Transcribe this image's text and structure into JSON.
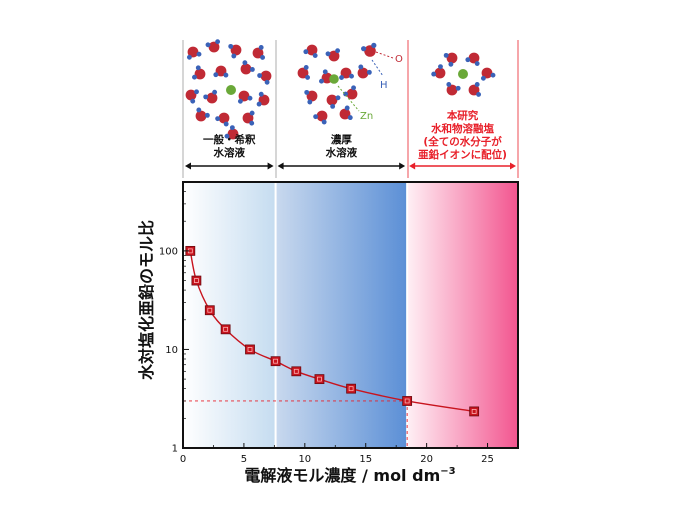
{
  "chart_data": {
    "type": "line",
    "xlabel_main": "電解液モル濃度 / mol dm",
    "xlabel_sup": "−3",
    "ylabel": "水対塩化亜鉛のモル比",
    "xlim": [
      0,
      27.5
    ],
    "ylim": [
      1,
      500
    ],
    "y_scale": "log",
    "x_ticks": [
      0,
      5,
      10,
      15,
      20,
      25
    ],
    "x_tick_labels": [
      "0",
      "5",
      "10",
      "15",
      "20",
      "25"
    ],
    "y_ticks": [
      1,
      10,
      100
    ],
    "y_tick_labels": [
      "1",
      "10",
      "100"
    ],
    "grid": false,
    "series": [
      {
        "color": "#c8141e",
        "marker": "square",
        "points": [
          {
            "x": 0.6,
            "y": 100
          },
          {
            "x": 1.1,
            "y": 50
          },
          {
            "x": 2.2,
            "y": 25
          },
          {
            "x": 3.5,
            "y": 16
          },
          {
            "x": 5.5,
            "y": 10
          },
          {
            "x": 7.6,
            "y": 7.6
          },
          {
            "x": 9.3,
            "y": 6
          },
          {
            "x": 11.2,
            "y": 5
          },
          {
            "x": 13.8,
            "y": 4
          },
          {
            "x": 18.4,
            "y": 3
          },
          {
            "x": 23.9,
            "y": 2.35
          }
        ]
      }
    ],
    "reference_point": {
      "x": 18.4,
      "y": 3,
      "color": "#e8202a"
    },
    "regions": [
      {
        "x_range": [
          0,
          7.6
        ],
        "labels": [
          "一般・希釈",
          "水溶液"
        ],
        "label_color": "#111111"
      },
      {
        "x_range": [
          7.6,
          18.4
        ],
        "labels": [
          "濃厚",
          "水溶液"
        ],
        "label_color": "#111111"
      },
      {
        "x_range": [
          18.4,
          27.5
        ],
        "labels": [
          "本研究",
          "水和物溶融塩",
          "(全ての水分子が",
          "亜鉛イオンに配位)"
        ],
        "label_color": "#e8202a"
      }
    ],
    "atom_labels": {
      "oxygen": "O",
      "hydrogen": "H",
      "zinc": "Zn"
    }
  },
  "colors": {
    "series": "#c8141e",
    "reference": "#e8202a",
    "oxygen": "#c02a35",
    "hydrogen": "#3a62b8",
    "zinc": "#6aa838",
    "region1_bg": "#c5dcf0",
    "region2_bg": "#5b8fd6",
    "region3_bg": "#f2558f"
  }
}
